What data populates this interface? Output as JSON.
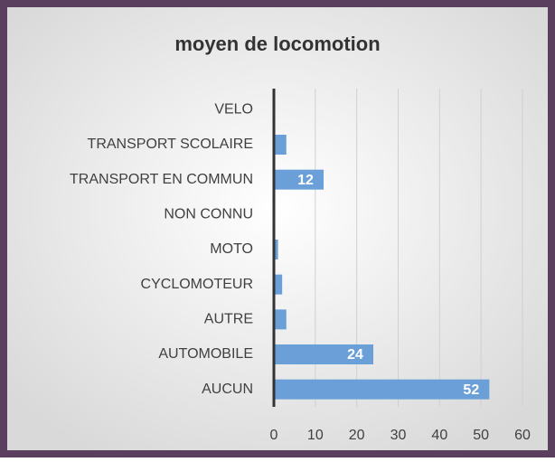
{
  "chart_data": {
    "type": "bar",
    "orientation": "horizontal",
    "title": "moyen de locomotion",
    "categories": [
      "VELO",
      "TRANSPORT SCOLAIRE",
      "TRANSPORT EN COMMUN",
      "NON CONNU",
      "MOTO",
      "CYCLOMOTEUR",
      "AUTRE",
      "AUTOMOBILE",
      "AUCUN"
    ],
    "values": [
      0,
      3,
      12,
      0,
      1,
      2,
      3,
      24,
      52
    ],
    "value_labels": [
      null,
      null,
      "12",
      null,
      null,
      null,
      null,
      "24",
      "52"
    ],
    "color": "#6a9fd8",
    "xlim": [
      0,
      60
    ],
    "xticks": [
      0,
      10,
      20,
      30,
      40,
      50,
      60
    ],
    "grid": true
  }
}
